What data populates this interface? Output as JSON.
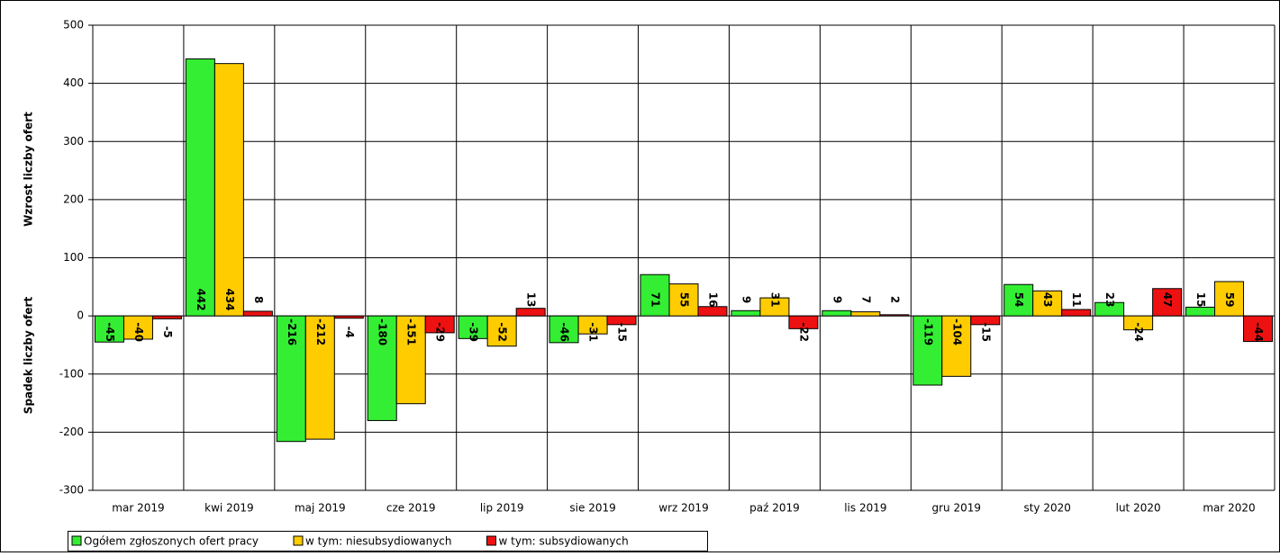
{
  "chart_data": {
    "type": "bar",
    "ylabel_top": "Wzrost liczby ofert",
    "ylabel_bottom": "Spadek liczby ofert",
    "categories": [
      "mar 2019",
      "kwi 2019",
      "maj 2019",
      "cze 2019",
      "lip 2019",
      "sie 2019",
      "wrz 2019",
      "paź 2019",
      "lis 2019",
      "gru 2019",
      "sty 2020",
      "lut 2020",
      "mar 2020"
    ],
    "series": [
      {
        "name": "Ogółem zgłoszonych ofert pracy",
        "color": "#33ee33",
        "values": [
          -45,
          442,
          -216,
          -180,
          -39,
          -46,
          71,
          9,
          9,
          -119,
          54,
          23,
          15
        ]
      },
      {
        "name": "w tym: niesubsydiowanych",
        "color": "#ffcc00",
        "values": [
          -40,
          434,
          -212,
          -151,
          -52,
          -31,
          55,
          31,
          7,
          -104,
          43,
          -24,
          59
        ]
      },
      {
        "name": "w tym: subsydiowanych",
        "color": "#ee1111",
        "values": [
          -5,
          8,
          -4,
          -29,
          13,
          -15,
          16,
          -22,
          2,
          -15,
          11,
          47,
          -44
        ]
      }
    ],
    "ylim": [
      -300,
      500
    ],
    "yticks": [
      -300,
      -200,
      -100,
      0,
      100,
      200,
      300,
      400,
      500
    ],
    "grid": true
  }
}
